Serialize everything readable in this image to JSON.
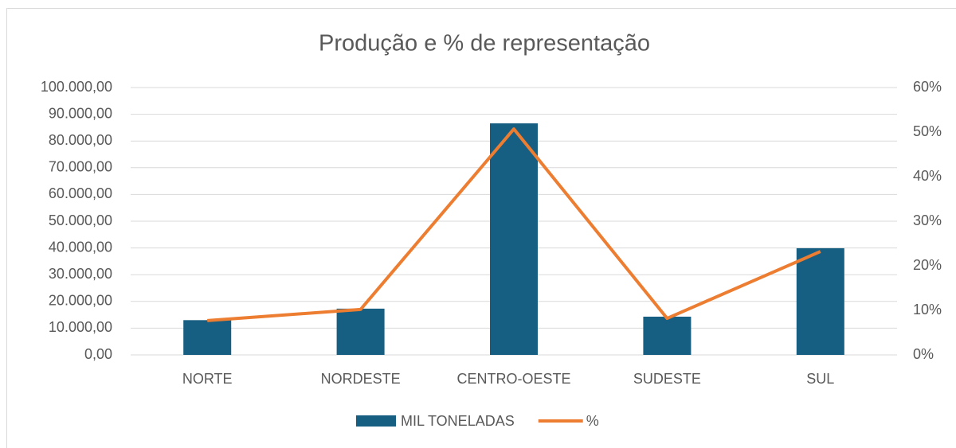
{
  "chart_data": {
    "type": "bar",
    "title": "Produção e % de representação",
    "categories": [
      "NORTE",
      "NORDESTE",
      "CENTRO-OESTE",
      "SUDESTE",
      "SUL"
    ],
    "series": [
      {
        "name": "MIL TONELADAS",
        "type": "bar",
        "color": "#175f82",
        "values": [
          13000,
          17300,
          86600,
          14300,
          39900
        ]
      },
      {
        "name": "%",
        "type": "line",
        "axis": "y2",
        "color": "#ed7d31",
        "values": [
          7.7,
          10.2,
          50.7,
          8.2,
          23.2
        ]
      }
    ],
    "ylim": [
      0,
      100000
    ],
    "yticks": [
      {
        "value": 0,
        "label": "0,00"
      },
      {
        "value": 10000,
        "label": "10.000,00"
      },
      {
        "value": 20000,
        "label": "20.000,00"
      },
      {
        "value": 30000,
        "label": "30.000,00"
      },
      {
        "value": 40000,
        "label": "40.000,00"
      },
      {
        "value": 50000,
        "label": "50.000,00"
      },
      {
        "value": 60000,
        "label": "60.000,00"
      },
      {
        "value": 70000,
        "label": "70.000,00"
      },
      {
        "value": 80000,
        "label": "80.000,00"
      },
      {
        "value": 90000,
        "label": "90.000,00"
      },
      {
        "value": 100000,
        "label": "100.000,00"
      }
    ],
    "y2lim": [
      0,
      60
    ],
    "y2ticks": [
      {
        "value": 0,
        "label": "0%"
      },
      {
        "value": 10,
        "label": "10%"
      },
      {
        "value": 20,
        "label": "20%"
      },
      {
        "value": 30,
        "label": "30%"
      },
      {
        "value": 40,
        "label": "40%"
      },
      {
        "value": 50,
        "label": "50%"
      },
      {
        "value": 60,
        "label": "60%"
      }
    ],
    "grid": true,
    "legend": "bottom"
  }
}
